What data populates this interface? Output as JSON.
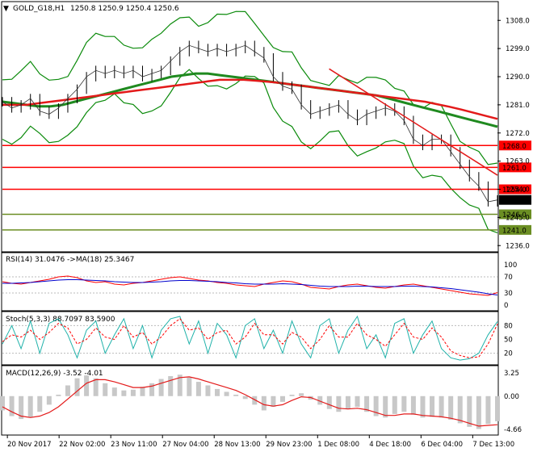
{
  "chart_data": [
    {
      "type": "line",
      "panel": "price",
      "header": {
        "symbol": "GOLD_G18,H1",
        "ohlc": "1250.8 1250.9 1250.4 1250.6"
      },
      "y_range": [
        1234,
        1314
      ],
      "y_ticks": [
        "1308.0",
        "1299.0",
        "1290.0",
        "1281.0",
        "1272.0",
        "1263.0",
        "1254.0",
        "1245.0",
        "1236.0"
      ],
      "x_labels": [
        "20 Nov 2017",
        "22 Nov 02:00",
        "23 Nov 11:00",
        "27 Nov 04:00",
        "28 Nov 13:00",
        "29 Nov 23:00",
        "1 Dec 08:00",
        "4 Dec 18:00",
        "6 Dec 04:00",
        "7 Dec 13:00"
      ],
      "levels": [
        {
          "value": 1268.0,
          "label": "1268.0",
          "color": "#ff0000"
        },
        {
          "value": 1261.0,
          "label": "1261.0",
          "color": "#ff0000"
        },
        {
          "value": 1254.0,
          "label": "1254.0",
          "color": "#ff0000"
        },
        {
          "value": 1246.0,
          "label": "1246.0",
          "color": "#6b8e23"
        },
        {
          "value": 1241.0,
          "label": "1241.0",
          "color": "#6b8e23"
        }
      ],
      "current_price": {
        "value": 1250.6,
        "label": "1250.6"
      },
      "close": [
        1282,
        1280,
        1281,
        1283,
        1279,
        1278,
        1280,
        1283,
        1286,
        1290,
        1292,
        1291,
        1292,
        1291,
        1292,
        1290,
        1291,
        1292,
        1295,
        1298,
        1300,
        1299,
        1298,
        1299,
        1298,
        1299,
        1300,
        1298,
        1296,
        1290,
        1287,
        1286,
        1281,
        1278,
        1279,
        1280,
        1281,
        1278,
        1276,
        1278,
        1279,
        1280,
        1279,
        1276,
        1270,
        1268,
        1270,
        1270,
        1266,
        1262,
        1258,
        1255,
        1250,
        1250.6
      ],
      "sma_red": [
        1281,
        1281,
        1281,
        1281.5,
        1282,
        1282.5,
        1283,
        1283.5,
        1284,
        1284.5,
        1285,
        1285.5,
        1286,
        1286.5,
        1287,
        1287.5,
        1288,
        1288.5,
        1289,
        1289,
        1289,
        1288.7,
        1288.4,
        1288,
        1287.5,
        1287,
        1286.5,
        1286,
        1285.5,
        1285,
        1284.5,
        1284,
        1283.5,
        1283,
        1282.5,
        1282,
        1281.2,
        1280.4,
        1279.5,
        1278.5,
        1277.5,
        1276.5
      ],
      "sma_green": [
        1282,
        1281.5,
        1281,
        1280.5,
        1280.5,
        1281,
        1282,
        1283,
        1284,
        1285,
        1286,
        1287,
        1288,
        1289,
        1290,
        1290.5,
        1291,
        1291,
        1290.5,
        1290,
        1289.5,
        1289,
        1288.5,
        1288,
        1287.5,
        1287,
        1286.5,
        1286,
        1285.5,
        1285,
        1284.5,
        1284,
        1283,
        1282,
        1281,
        1280,
        1279,
        1278,
        1277,
        1276,
        1275,
        1274
      ],
      "trendline": {
        "from": [
          0.66,
          1292.5
        ],
        "to": [
          1.0,
          1258.5
        ]
      }
    },
    {
      "type": "line",
      "panel": "rsi",
      "header": "RSI(14) 31.0476 ->MA(18) 25.3467",
      "y_ticks": [
        "100",
        "70",
        "30",
        "0"
      ],
      "series": [
        {
          "name": "RSI(14)",
          "color": "#ff0000",
          "values": [
            58,
            54,
            52,
            56,
            60,
            64,
            70,
            72,
            68,
            60,
            56,
            58,
            52,
            50,
            54,
            56,
            60,
            64,
            68,
            70,
            66,
            62,
            60,
            56,
            54,
            50,
            48,
            46,
            52,
            56,
            60,
            58,
            52,
            44,
            42,
            40,
            46,
            50,
            52,
            48,
            44,
            42,
            46,
            50,
            52,
            48,
            44,
            40,
            36,
            32,
            28,
            26,
            24,
            31
          ]
        },
        {
          "name": "MA(18)",
          "color": "#0000cc",
          "values": [
            54,
            54,
            55,
            56,
            58,
            60,
            62,
            63,
            63,
            62,
            61,
            60,
            58,
            57,
            56,
            56,
            57,
            58,
            60,
            61,
            61,
            60,
            59,
            58,
            56,
            55,
            53,
            52,
            52,
            52,
            53,
            52,
            51,
            49,
            47,
            46,
            46,
            46,
            47,
            47,
            46,
            46,
            46,
            47,
            47,
            46,
            45,
            43,
            41,
            38,
            35,
            32,
            28,
            25
          ]
        }
      ]
    },
    {
      "type": "line",
      "panel": "stochastic",
      "header": "Stoch(5,3,3) 88.7097 83.5900",
      "y_ticks": [
        "80",
        "50",
        "20"
      ],
      "series": [
        {
          "name": "%K",
          "color": "#20b2aa",
          "values": [
            40,
            80,
            30,
            90,
            20,
            85,
            95,
            60,
            10,
            70,
            90,
            20,
            60,
            95,
            30,
            80,
            10,
            70,
            95,
            100,
            40,
            90,
            20,
            85,
            60,
            10,
            80,
            95,
            30,
            70,
            20,
            90,
            40,
            10,
            80,
            95,
            20,
            70,
            100,
            30,
            60,
            10,
            85,
            95,
            20,
            60,
            90,
            30,
            10,
            5,
            8,
            20,
            60,
            88.7
          ]
        },
        {
          "name": "%D",
          "color": "#ff0000",
          "values": [
            45,
            60,
            55,
            70,
            50,
            65,
            85,
            75,
            40,
            50,
            75,
            55,
            50,
            80,
            55,
            65,
            40,
            55,
            80,
            95,
            70,
            75,
            50,
            65,
            70,
            40,
            55,
            85,
            60,
            60,
            40,
            65,
            55,
            30,
            50,
            80,
            55,
            55,
            85,
            60,
            50,
            35,
            60,
            85,
            55,
            50,
            75,
            55,
            25,
            15,
            10,
            12,
            40,
            83.6
          ]
        }
      ]
    },
    {
      "type": "bar",
      "panel": "macd",
      "header": "MACD(12,26,9) -3.52 -4.01",
      "y_ticks": [
        "3.25",
        "0.00",
        "-4.66"
      ],
      "y_range": [
        -4.66,
        3.25
      ],
      "histogram": [
        -2.0,
        -2.8,
        -3.2,
        -3.0,
        -2.2,
        -1.2,
        0.2,
        1.5,
        2.5,
        2.9,
        2.5,
        1.8,
        1.2,
        0.8,
        0.9,
        1.3,
        1.8,
        2.4,
        2.8,
        3.0,
        2.6,
        2.0,
        1.5,
        1.0,
        0.6,
        0.2,
        -0.4,
        -1.2,
        -2.0,
        -1.5,
        -0.8,
        0.2,
        0.4,
        -0.5,
        -1.2,
        -1.8,
        -2.2,
        -1.8,
        -1.5,
        -2.2,
        -2.8,
        -3.0,
        -2.5,
        -2.2,
        -2.6,
        -3.0,
        -2.9,
        -3.0,
        -3.3,
        -3.8,
        -4.3,
        -4.6,
        -3.9,
        -3.52
      ],
      "signal": [
        -1.5,
        -2.2,
        -2.8,
        -3.0,
        -2.8,
        -2.3,
        -1.5,
        -0.4,
        0.7,
        1.8,
        2.3,
        2.3,
        2.0,
        1.6,
        1.2,
        1.2,
        1.4,
        1.8,
        2.2,
        2.6,
        2.7,
        2.4,
        2.0,
        1.6,
        1.2,
        0.8,
        0.2,
        -0.5,
        -1.2,
        -1.4,
        -1.2,
        -0.6,
        -0.1,
        -0.2,
        -0.7,
        -1.2,
        -1.7,
        -1.8,
        -1.7,
        -1.9,
        -2.3,
        -2.7,
        -2.7,
        -2.5,
        -2.5,
        -2.7,
        -2.8,
        -2.9,
        -3.1,
        -3.4,
        -3.8,
        -4.2,
        -4.1,
        -4.01
      ]
    }
  ],
  "ui": {
    "menu_glyph": "▼"
  }
}
